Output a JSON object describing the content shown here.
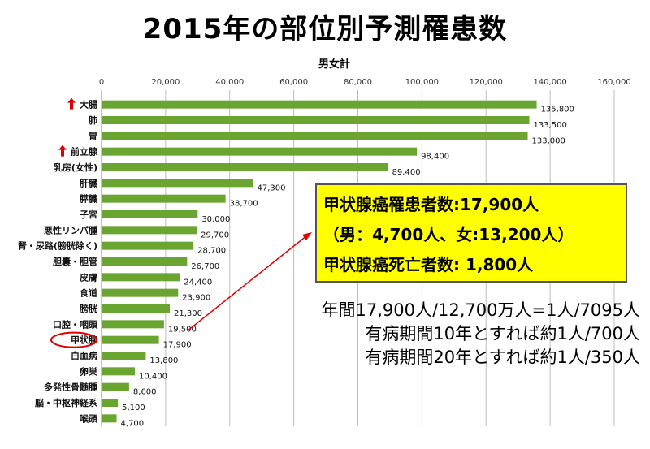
{
  "header": {
    "title": "2015年の部位別予測罹患数",
    "subtitle": "男女計"
  },
  "chart_data": {
    "type": "bar",
    "orientation": "horizontal",
    "title": "2015年の部位別予測罹患数",
    "subtitle": "男女計",
    "categories": [
      "大腸",
      "肺",
      "胃",
      "前立腺",
      "乳房(女性)",
      "肝臓",
      "膵臓",
      "子宮",
      "悪性リンパ腫",
      "腎・尿路(膀胱除く)",
      "胆嚢・胆管",
      "皮膚",
      "食道",
      "膀胱",
      "口腔・咽頭",
      "甲状腺",
      "白血病",
      "卵巣",
      "多発性骨髄腫",
      "脳・中枢神経系",
      "喉頭"
    ],
    "values": [
      135800,
      133500,
      133000,
      98400,
      89400,
      47300,
      38700,
      30000,
      29700,
      28700,
      26700,
      24400,
      23900,
      21300,
      19500,
      17900,
      13800,
      10400,
      8600,
      5100,
      4700
    ],
    "value_labels": [
      "135,800",
      "133,500",
      "133,000",
      "98,400",
      "89,400",
      "47,300",
      "38,700",
      "30,000",
      "29,700",
      "28,700",
      "26,700",
      "24,400",
      "23,900",
      "21,300",
      "19,500",
      "17,900",
      "13,800",
      "10,400",
      "8,600",
      "5,100",
      "4,700"
    ],
    "xlim": [
      0,
      160000
    ],
    "x_ticks": [
      "0",
      "20,000",
      "40,000",
      "60,000",
      "80,000",
      "100,000",
      "120,000",
      "140,000",
      "160,000"
    ],
    "grid": true,
    "bar_color": "#6aa532",
    "up_arrow_categories": [
      "大腸",
      "前立腺"
    ],
    "highlighted_category": "甲状腺",
    "marker_color": "#e00000"
  },
  "callout": {
    "line1": "甲状腺癌罹患者数:17,900人",
    "line2": "（男：4,700人、女:13,200人）",
    "line3": "甲状腺癌死亡者数:  1,800人"
  },
  "stats": {
    "line1": "年間17,900人/12,700万人=1人/7095人",
    "line2": "有病期間10年とすれば約1人/700人",
    "line3": "有病期間20年とすれば約1人/350人"
  }
}
